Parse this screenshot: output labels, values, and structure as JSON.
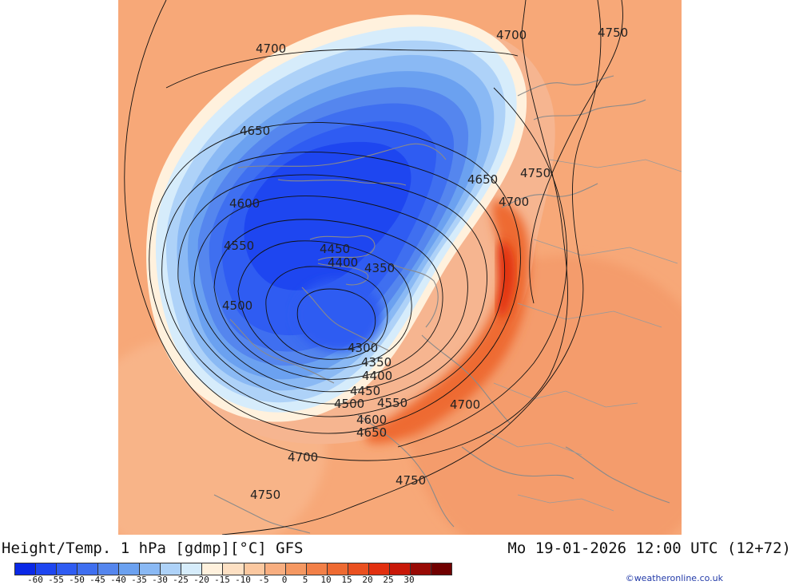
{
  "header": {
    "left_text": "Height/Temp. 1 hPa [gdmp][°C] GFS",
    "right_text": "Mo 19-01-2026 12:00 UTC (12+72)"
  },
  "credit": "©weatheronline.co.uk",
  "legend": {
    "ticks": [
      "-60",
      "-55",
      "-50",
      "-45",
      "-40",
      "-35",
      "-30",
      "-25",
      "-20",
      "-15",
      "-10",
      "-5",
      "0",
      "5",
      "10",
      "15",
      "20",
      "25",
      "30"
    ],
    "colors": [
      "#0a28e6",
      "#1e46f0",
      "#2f5cf2",
      "#3f6ff0",
      "#5586ee",
      "#6ba1f0",
      "#8ab9f4",
      "#aed2f8",
      "#d6ecfb",
      "#fff1dd",
      "#fde0c3",
      "#fbc8a0",
      "#f8ae80",
      "#f59862",
      "#f28048",
      "#ee6a32",
      "#ea5020",
      "#e23010",
      "#c81808",
      "#980a05",
      "#700000"
    ]
  },
  "map": {
    "contour_labels": [
      "4700",
      "4700",
      "4750",
      "4650",
      "4650",
      "4750",
      "4600",
      "4700",
      "4550",
      "4450",
      "4400",
      "4350",
      "4500",
      "4300",
      "4350",
      "4400",
      "4450",
      "4500",
      "4550",
      "4700",
      "4600",
      "4650",
      "4700",
      "4750",
      "4750"
    ]
  }
}
